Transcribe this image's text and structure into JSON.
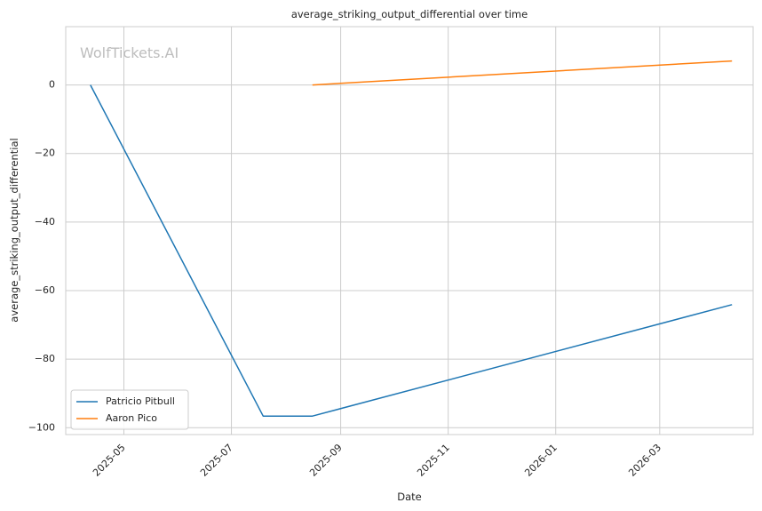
{
  "chart_data": {
    "type": "line",
    "title": "average_striking_output_differential over time",
    "xlabel": "Date",
    "ylabel": "average_striking_output_differential",
    "watermark": "WolfTickets.AI",
    "x_ticks": [
      "2025-05",
      "2025-07",
      "2025-09",
      "2025-11",
      "2026-01",
      "2026-03"
    ],
    "x_tick_dates": [
      "2025-05-01",
      "2025-07-01",
      "2025-09-01",
      "2025-11-01",
      "2026-01-01",
      "2026-03-01"
    ],
    "xlim": [
      "2025-03-29",
      "2026-04-23"
    ],
    "y_ticks": [
      0,
      -20,
      -40,
      -60,
      -80,
      -100
    ],
    "y_tick_labels": [
      "0",
      "−20",
      "−40",
      "−60",
      "−80",
      "−100"
    ],
    "ylim": [
      -102,
      17
    ],
    "grid": true,
    "legend_position": "lower-left",
    "series": [
      {
        "name": "Patricio Pitbull",
        "color": "#1f77b4",
        "points": [
          {
            "x": "2025-04-12",
            "y": 0
          },
          {
            "x": "2025-07-19",
            "y": -96.6
          },
          {
            "x": "2025-08-16",
            "y": -96.6
          },
          {
            "x": "2026-04-11",
            "y": -64.1
          }
        ]
      },
      {
        "name": "Aaron Pico",
        "color": "#ff7f0e",
        "points": [
          {
            "x": "2025-08-16",
            "y": 0
          },
          {
            "x": "2026-04-11",
            "y": 7
          }
        ]
      }
    ]
  }
}
